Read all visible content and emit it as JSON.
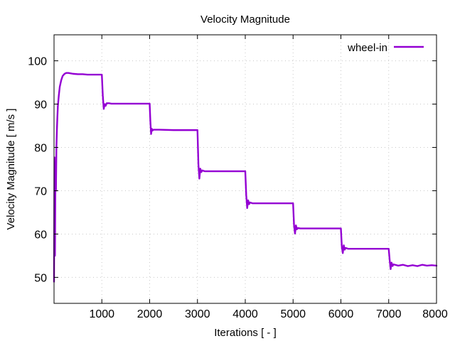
{
  "chart_data": {
    "type": "line",
    "title": "Velocity Magnitude",
    "xlabel": "Iterations [ - ]",
    "ylabel": "Velocity Magnitude [ m/s ]",
    "xlim": [
      0,
      8000
    ],
    "ylim": [
      44,
      106
    ],
    "xticks": [
      1000,
      2000,
      3000,
      4000,
      5000,
      6000,
      7000,
      8000
    ],
    "yticks": [
      50,
      60,
      70,
      80,
      90,
      100
    ],
    "grid": true,
    "legend_position": "top-right",
    "colors": {
      "series": "#9400d3",
      "grid": "#c8c8c8",
      "axis": "#000000"
    },
    "series": [
      {
        "name": "wheel-in",
        "x": [
          0,
          10,
          20,
          30,
          40,
          50,
          60,
          70,
          80,
          100,
          120,
          150,
          180,
          220,
          260,
          300,
          350,
          400,
          500,
          600,
          700,
          800,
          900,
          1000,
          1020,
          1040,
          1060,
          1080,
          1100,
          1150,
          1200,
          1300,
          1500,
          1700,
          1900,
          2000,
          2015,
          2030,
          2045,
          2060,
          2080,
          2100,
          2200,
          2500,
          2800,
          3000,
          3020,
          3040,
          3060,
          3080,
          3100,
          3150,
          3300,
          3600,
          3900,
          4000,
          4020,
          4040,
          4060,
          4080,
          4100,
          4150,
          4300,
          4600,
          4900,
          5000,
          5020,
          5040,
          5060,
          5080,
          5100,
          5150,
          5300,
          5600,
          5900,
          6000,
          6020,
          6040,
          6060,
          6080,
          6100,
          6150,
          6300,
          6600,
          6900,
          7000,
          7020,
          7040,
          7060,
          7080,
          7100,
          7200,
          7300,
          7400,
          7500,
          7600,
          7700,
          7800,
          7900,
          8000
        ],
        "y": [
          49,
          77.7,
          55,
          75,
          70,
          80,
          84,
          87,
          89.5,
          92,
          94,
          95.5,
          96.5,
          97,
          97.2,
          97.2,
          97.1,
          97,
          96.9,
          96.9,
          96.8,
          96.8,
          96.8,
          96.8,
          92,
          88.9,
          90,
          89.6,
          90.2,
          90.2,
          90.1,
          90.1,
          90.1,
          90.1,
          90.1,
          90.1,
          86,
          83.1,
          84.3,
          83.9,
          84.1,
          84.1,
          84.1,
          84.0,
          84.0,
          84.0,
          76,
          72.8,
          75.1,
          74.3,
          74.7,
          74.5,
          74.5,
          74.5,
          74.5,
          74.5,
          69,
          66.0,
          67.8,
          66.9,
          67.3,
          67.1,
          67.1,
          67.1,
          67.1,
          67.1,
          62,
          60.1,
          62.0,
          61.1,
          61.4,
          61.3,
          61.3,
          61.3,
          61.3,
          61.3,
          57,
          55.6,
          57.4,
          56.4,
          56.8,
          56.6,
          56.6,
          56.6,
          56.6,
          56.6,
          54,
          51.9,
          53.4,
          52.6,
          53.0,
          52.7,
          52.9,
          52.6,
          52.8,
          52.6,
          52.9,
          52.7,
          52.8,
          52.7
        ]
      }
    ]
  }
}
